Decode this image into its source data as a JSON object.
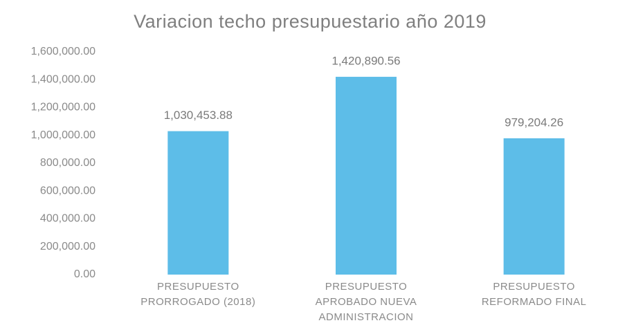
{
  "chart_data": {
    "type": "bar",
    "title": "Variacion techo presupuestario año 2019",
    "categories": [
      "PRESUPUESTO PRORROGADO (2018)",
      "PRESUPUESTO APROBADO NUEVA ADMINISTRACION",
      "PRESUPUESTO REFORMADO FINAL"
    ],
    "values": [
      1030453.88,
      1420890.56,
      979204.26
    ],
    "value_labels": [
      "1,030,453.88",
      "1,420,890.56",
      "979,204.26"
    ],
    "color": "#5dbde8",
    "ylim": [
      0,
      1600000
    ],
    "yticks": [
      {
        "value": 0,
        "label": "0.00"
      },
      {
        "value": 200000,
        "label": "200,000.00"
      },
      {
        "value": 400000,
        "label": "400,000.00"
      },
      {
        "value": 600000,
        "label": "600,000.00"
      },
      {
        "value": 800000,
        "label": "800,000.00"
      },
      {
        "value": 1000000,
        "label": "1,000,000.00"
      },
      {
        "value": 1200000,
        "label": "1,200,000.00"
      },
      {
        "value": 1400000,
        "label": "1,400,000.00"
      },
      {
        "value": 1600000,
        "label": "1,600,000.00"
      }
    ],
    "grid": false
  }
}
